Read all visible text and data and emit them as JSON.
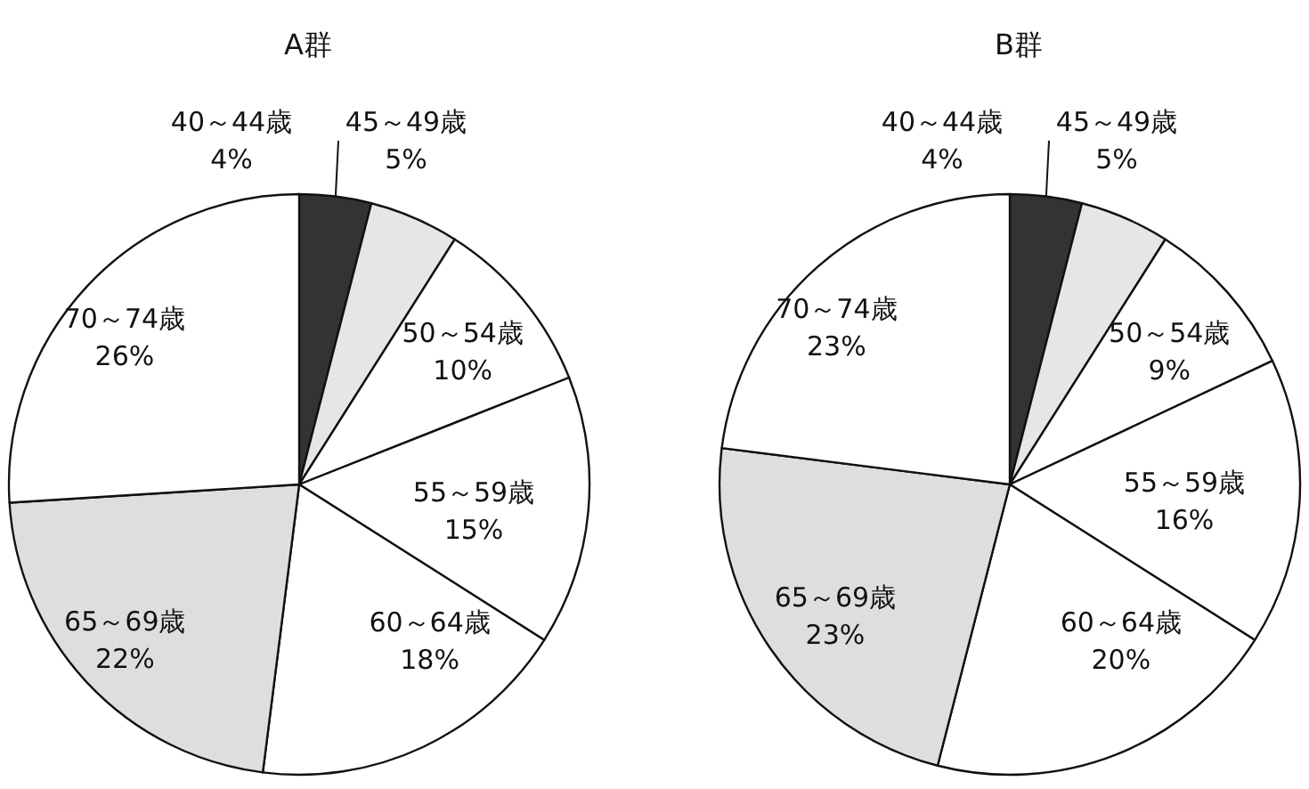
{
  "chart_data": [
    {
      "type": "pie",
      "title": "A群",
      "categories": [
        "40～44歳",
        "45～49歳",
        "50～54歳",
        "55～59歳",
        "60～64歳",
        "65～69歳",
        "70～74歳"
      ],
      "values": [
        4,
        5,
        10,
        15,
        18,
        22,
        26
      ],
      "value_labels": [
        "4%",
        "5%",
        "10%",
        "15%",
        "18%",
        "22%",
        "26%"
      ],
      "colors": [
        "#333333",
        "#e6e6e6",
        "#ffffff",
        "#ffffff",
        "#ffffff",
        "#dedede",
        "#ffffff"
      ],
      "legend": false
    },
    {
      "type": "pie",
      "title": "B群",
      "categories": [
        "40～44歳",
        "45～49歳",
        "50～54歳",
        "55～59歳",
        "60～64歳",
        "65～69歳",
        "70～74歳"
      ],
      "values": [
        4,
        5,
        9,
        16,
        20,
        23,
        23
      ],
      "value_labels": [
        "4%",
        "5%",
        "9%",
        "16%",
        "20%",
        "23%",
        "23%"
      ],
      "colors": [
        "#333333",
        "#e6e6e6",
        "#ffffff",
        "#ffffff",
        "#ffffff",
        "#dedede",
        "#ffffff"
      ],
      "legend": false
    }
  ]
}
